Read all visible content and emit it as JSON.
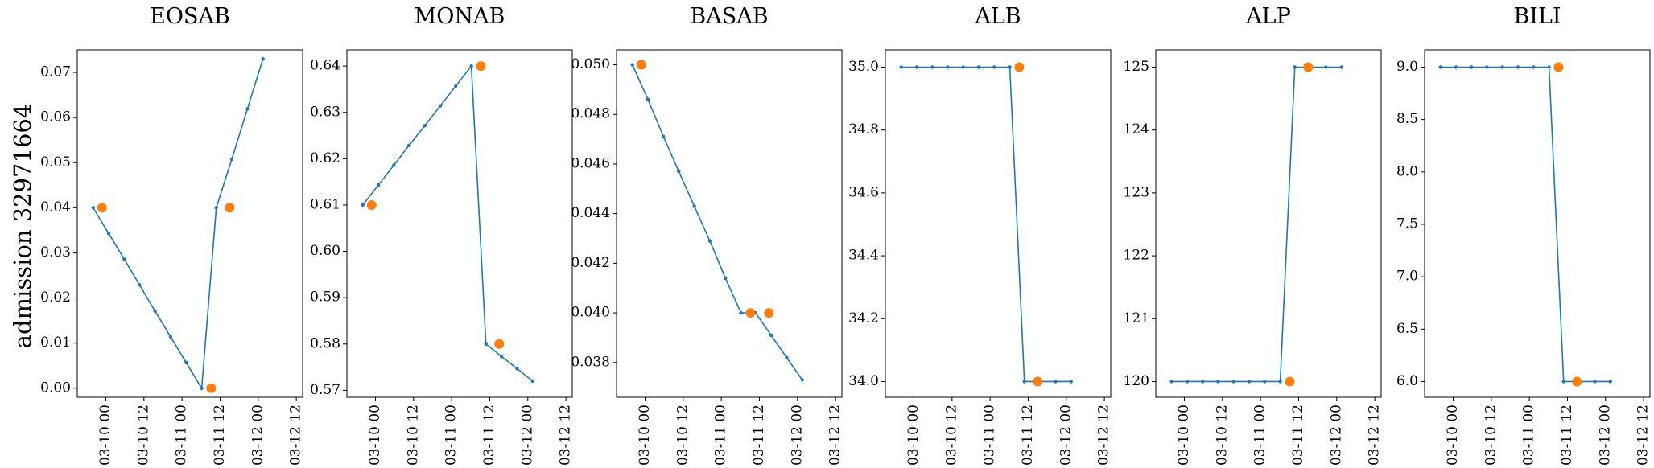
{
  "row_label": "admission 32971664",
  "colors": {
    "line": "#1f77b4",
    "marker": "#ff7f0e"
  },
  "chart_data": [
    {
      "type": "line",
      "title": "EOSAB",
      "x_ticks": [
        "03-10 00",
        "03-10 12",
        "03-11 00",
        "03-11 12",
        "03-12 00",
        "03-12 12"
      ],
      "y_ticks": [
        "0.00",
        "0.01",
        "0.02",
        "0.03",
        "0.04",
        "0.05",
        "0.06",
        "0.07"
      ],
      "ylim": [
        -0.002,
        0.075
      ],
      "x_range_hours": [
        -9,
        62
      ],
      "series": [
        {
          "kind": "line",
          "points": [
            [
              -4,
              0.04
            ],
            [
              0.9,
              0.0343
            ],
            [
              5.8,
              0.0286
            ],
            [
              10.6,
              0.0229
            ],
            [
              15.5,
              0.0171
            ],
            [
              20.4,
              0.0114
            ],
            [
              25.3,
              0.0057
            ],
            [
              30.2,
              0.0
            ],
            [
              34.8,
              0.04
            ],
            [
              39.7,
              0.0508
            ],
            [
              44.6,
              0.0619
            ],
            [
              49.5,
              0.073
            ]
          ]
        },
        {
          "kind": "scatter",
          "points": [
            [
              -1.2,
              0.04
            ],
            [
              33.2,
              0.0
            ],
            [
              39.0,
              0.04
            ]
          ]
        }
      ]
    },
    {
      "type": "line",
      "title": "MONAB",
      "x_ticks": [
        "03-10 00",
        "03-10 12",
        "03-11 00",
        "03-11 12",
        "03-12 00",
        "03-12 12"
      ],
      "y_ticks": [
        "0.57",
        "0.58",
        "0.59",
        "0.60",
        "0.61",
        "0.62",
        "0.63",
        "0.64"
      ],
      "ylim": [
        0.5685,
        0.6435
      ],
      "x_range_hours": [
        -9,
        62
      ],
      "series": [
        {
          "kind": "line",
          "points": [
            [
              -4,
              0.61
            ],
            [
              0.9,
              0.6143
            ],
            [
              5.8,
              0.6186
            ],
            [
              10.6,
              0.6229
            ],
            [
              15.5,
              0.6271
            ],
            [
              20.4,
              0.6314
            ],
            [
              25.3,
              0.6357
            ],
            [
              30.2,
              0.64
            ],
            [
              34.8,
              0.58
            ],
            [
              39.7,
              0.5773
            ],
            [
              44.6,
              0.5747
            ],
            [
              49.5,
              0.572
            ]
          ]
        },
        {
          "kind": "scatter",
          "points": [
            [
              -1.2,
              0.61
            ],
            [
              33.2,
              0.64
            ],
            [
              39.0,
              0.58
            ]
          ]
        }
      ]
    },
    {
      "type": "line",
      "title": "BASAB",
      "x_ticks": [
        "03-10 00",
        "03-10 12",
        "03-11 00",
        "03-11 12",
        "03-12 00",
        "03-12 12"
      ],
      "y_ticks": [
        "0.038",
        "0.040",
        "0.042",
        "0.044",
        "0.046",
        "0.048",
        "0.050"
      ],
      "ylim": [
        0.0366,
        0.0506
      ],
      "x_range_hours": [
        -9,
        62
      ],
      "series": [
        {
          "kind": "line",
          "points": [
            [
              -4,
              0.05
            ],
            [
              0.9,
              0.0486
            ],
            [
              5.8,
              0.0471
            ],
            [
              10.6,
              0.0457
            ],
            [
              15.5,
              0.0443
            ],
            [
              20.4,
              0.0429
            ],
            [
              25.3,
              0.0414
            ],
            [
              30.2,
              0.04
            ],
            [
              34.8,
              0.04
            ],
            [
              39.7,
              0.0391
            ],
            [
              44.6,
              0.0382
            ],
            [
              49.5,
              0.0373
            ]
          ]
        },
        {
          "kind": "scatter",
          "points": [
            [
              -1.2,
              0.05
            ],
            [
              33.2,
              0.04
            ],
            [
              39.0,
              0.04
            ]
          ]
        }
      ]
    },
    {
      "type": "line",
      "title": "ALB",
      "x_ticks": [
        "03-10 00",
        "03-10 12",
        "03-11 00",
        "03-11 12",
        "03-12 00",
        "03-12 12"
      ],
      "y_ticks": [
        "34.0",
        "34.2",
        "34.4",
        "34.6",
        "34.8",
        "35.0"
      ],
      "ylim": [
        33.95,
        35.055
      ],
      "x_range_hours": [
        -9,
        62
      ],
      "series": [
        {
          "kind": "line",
          "points": [
            [
              -4,
              35
            ],
            [
              0.9,
              35
            ],
            [
              5.8,
              35
            ],
            [
              10.6,
              35
            ],
            [
              15.5,
              35
            ],
            [
              20.4,
              35
            ],
            [
              25.3,
              35
            ],
            [
              30.2,
              35
            ],
            [
              34.8,
              34
            ],
            [
              39.7,
              34
            ],
            [
              44.6,
              34
            ],
            [
              49.5,
              34
            ]
          ]
        },
        {
          "kind": "scatter",
          "points": [
            [
              33.2,
              35
            ],
            [
              39.0,
              34
            ]
          ]
        }
      ]
    },
    {
      "type": "line",
      "title": "ALP",
      "x_ticks": [
        "03-10 00",
        "03-10 12",
        "03-11 00",
        "03-11 12",
        "03-12 00",
        "03-12 12"
      ],
      "y_ticks": [
        "120",
        "121",
        "122",
        "123",
        "124",
        "125"
      ],
      "ylim": [
        119.75,
        125.275
      ],
      "x_range_hours": [
        -9,
        62
      ],
      "series": [
        {
          "kind": "line",
          "points": [
            [
              -4,
              120
            ],
            [
              0.9,
              120
            ],
            [
              5.8,
              120
            ],
            [
              10.6,
              120
            ],
            [
              15.5,
              120
            ],
            [
              20.4,
              120
            ],
            [
              25.3,
              120
            ],
            [
              30.2,
              120
            ],
            [
              34.8,
              125
            ],
            [
              39.7,
              125
            ],
            [
              44.6,
              125
            ],
            [
              49.5,
              125
            ]
          ]
        },
        {
          "kind": "scatter",
          "points": [
            [
              33.2,
              120
            ],
            [
              39.0,
              125
            ]
          ]
        }
      ]
    },
    {
      "type": "line",
      "title": "BILI",
      "x_ticks": [
        "03-10 00",
        "03-10 12",
        "03-11 00",
        "03-11 12",
        "03-12 00",
        "03-12 12"
      ],
      "y_ticks": [
        "6.0",
        "6.5",
        "7.0",
        "7.5",
        "8.0",
        "8.5",
        "9.0"
      ],
      "ylim": [
        5.85,
        9.165
      ],
      "x_range_hours": [
        -9,
        62
      ],
      "series": [
        {
          "kind": "line",
          "points": [
            [
              -4,
              9
            ],
            [
              0.9,
              9
            ],
            [
              5.8,
              9
            ],
            [
              10.6,
              9
            ],
            [
              15.5,
              9
            ],
            [
              20.4,
              9
            ],
            [
              25.3,
              9
            ],
            [
              30.2,
              9
            ],
            [
              34.8,
              6
            ],
            [
              39.7,
              6
            ],
            [
              44.6,
              6
            ],
            [
              49.5,
              6
            ]
          ]
        },
        {
          "kind": "scatter",
          "points": [
            [
              33.2,
              9
            ],
            [
              39.0,
              6
            ]
          ]
        }
      ]
    }
  ]
}
